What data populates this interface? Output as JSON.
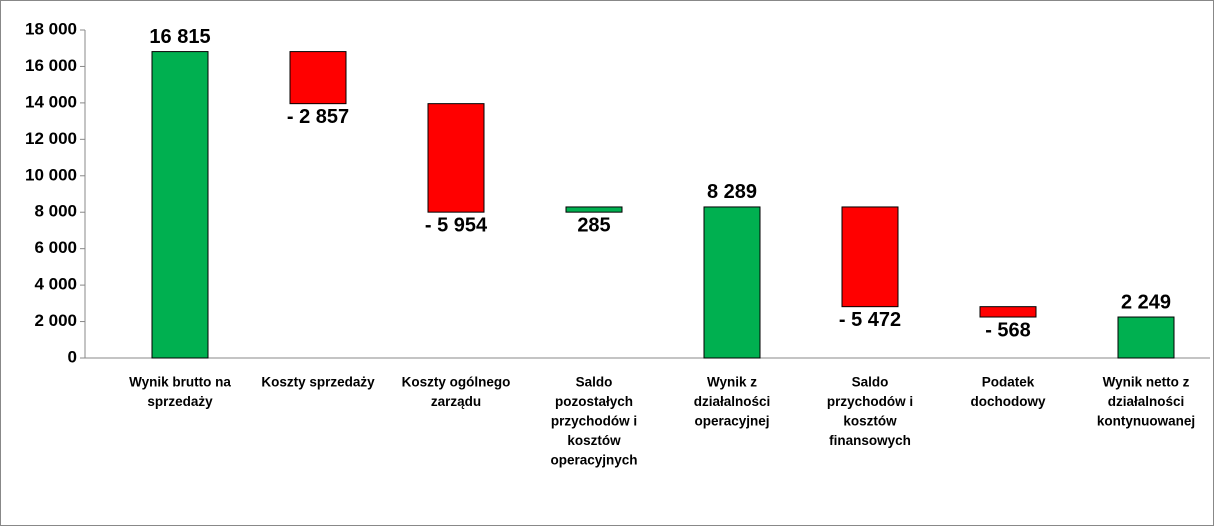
{
  "chart_data": {
    "type": "waterfall",
    "categories": [
      [
        "Wynik brutto na",
        "sprzedaży"
      ],
      [
        "Koszty sprzedaży"
      ],
      [
        "Koszty ogólnego",
        "zarządu"
      ],
      [
        "Saldo",
        "pozostałych",
        "przychodów i",
        "kosztów",
        "operacyjnych"
      ],
      [
        "Wynik z",
        "działalności",
        "operacyjnej"
      ],
      [
        "Saldo",
        "przychodów i",
        "kosztów",
        "finansowych"
      ],
      [
        "Podatek",
        "dochodowy"
      ],
      [
        "Wynik netto z",
        "działalności",
        "kontynuowanej"
      ]
    ],
    "measures": [
      "total",
      "relative",
      "relative",
      "relative",
      "total",
      "relative",
      "relative",
      "total"
    ],
    "values": [
      16815,
      -2857,
      -5954,
      285,
      8289,
      -5472,
      -568,
      2249
    ],
    "value_labels": [
      "16 815",
      "- 2 857",
      "- 5 954",
      "285",
      "8 289",
      "- 5 472",
      "- 568",
      "2 249"
    ],
    "positive_color": "#00b050",
    "negative_color": "#ff0000",
    "ylim": [
      0,
      18000
    ],
    "yticks": [
      0,
      {
        "value": 2000,
        "label": "2 000"
      },
      {
        "value": 4000,
        "label": "4 000"
      },
      {
        "value": 6000,
        "label": "6 000"
      },
      {
        "value": 8000,
        "label": "8 000"
      },
      {
        "value": 10000,
        "label": "10 000"
      },
      {
        "value": 12000,
        "label": "12 000"
      },
      {
        "value": 14000,
        "label": "14 000"
      },
      {
        "value": 16000,
        "label": "16 000"
      },
      {
        "value": 18000,
        "label": "18 000"
      }
    ],
    "grid": false
  }
}
